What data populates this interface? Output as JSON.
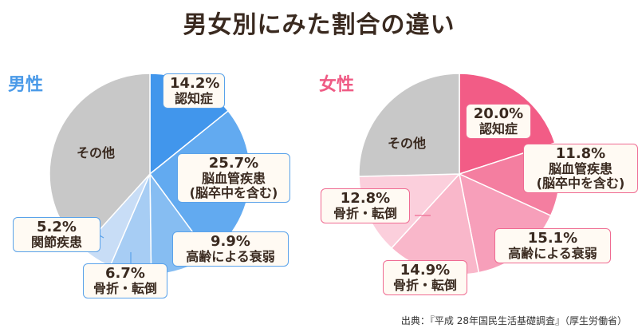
{
  "title": "男女別にみた割合の違い",
  "source": "出典：『平成 28年国民生活基礎調査』（厚生労働省）",
  "chart_data": [
    {
      "type": "pie",
      "title": "男性",
      "title_color": "#4a9ae8",
      "slices": [
        {
          "label": "認知症",
          "value": 14.2,
          "pct_text": "14.2%",
          "color": "#4196ec"
        },
        {
          "label": "脳血管疾患\n(脳卒中を含む)",
          "value": 25.7,
          "pct_text": "25.7%",
          "color": "#62aaf0"
        },
        {
          "label": "高齢による衰弱",
          "value": 9.9,
          "pct_text": "9.9%",
          "color": "#86bdf2"
        },
        {
          "label": "骨折・転倒",
          "value": 6.7,
          "pct_text": "6.7%",
          "color": "#a7cdf4"
        },
        {
          "label": "関節疾患",
          "value": 5.2,
          "pct_text": "5.2%",
          "color": "#c8ddf6"
        },
        {
          "label": "その他",
          "value": 38.3,
          "pct_text": "",
          "color": "#c8c8c8"
        }
      ]
    },
    {
      "type": "pie",
      "title": "女性",
      "title_color": "#ef5a84",
      "slices": [
        {
          "label": "認知症",
          "value": 20.0,
          "pct_text": "20.0%",
          "color": "#f25c86"
        },
        {
          "label": "脳血管疾患\n(脳卒中を含む)",
          "value": 11.8,
          "pct_text": "11.8%",
          "color": "#f47ea0"
        },
        {
          "label": "高齢による衰弱",
          "value": 15.1,
          "pct_text": "15.1%",
          "color": "#f79fba"
        },
        {
          "label": "骨折・転倒",
          "value": 14.9,
          "pct_text": "14.9%",
          "color": "#f9b7ca"
        },
        {
          "label": "骨折・転倒",
          "value": 12.8,
          "pct_text": "12.8%",
          "color": "#fbcfdc"
        },
        {
          "label": "その他",
          "value": 25.4,
          "pct_text": "",
          "color": "#c8c8c8"
        }
      ]
    }
  ]
}
